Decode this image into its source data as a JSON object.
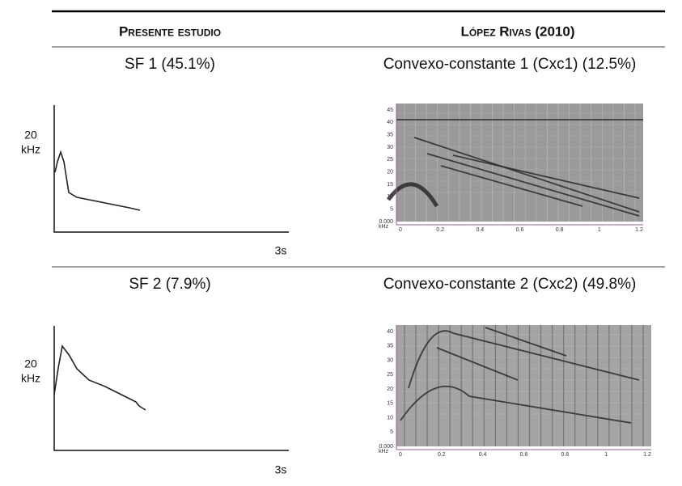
{
  "header": {
    "left": "Presente estudio",
    "right": "López Rivas (2010)"
  },
  "rows": [
    {
      "left_title": "SF 1 (45.1%)",
      "sketch": {
        "y_value": "20",
        "y_unit": "kHz",
        "x_value": "3s"
      },
      "right_title": "Convexo-constante 1 (Cxc1) (12.5%)",
      "spectrogram": {
        "y_unit": "kHz",
        "yticks": [
          "45",
          "40",
          "35",
          "30",
          "25",
          "20",
          "15",
          "10",
          "5",
          "0.000"
        ],
        "xticks": [
          "0",
          "0.2",
          "0.4",
          "0.6",
          "0.8",
          "1",
          "1.2"
        ]
      }
    },
    {
      "left_title": "SF 2 (7.9%)",
      "sketch": {
        "y_value": "20",
        "y_unit": "kHz",
        "x_value": "3s"
      },
      "right_title": "Convexo-constante 2 (Cxc2) (49.8%)",
      "spectrogram": {
        "y_unit": "kHz",
        "yticks": [
          "40",
          "35",
          "30",
          "25",
          "20",
          "15",
          "10",
          "5",
          "0.000"
        ],
        "xticks": [
          "0",
          "0.2",
          "0.4",
          "0.6",
          "0.8",
          "1",
          "1.2"
        ]
      }
    }
  ]
}
